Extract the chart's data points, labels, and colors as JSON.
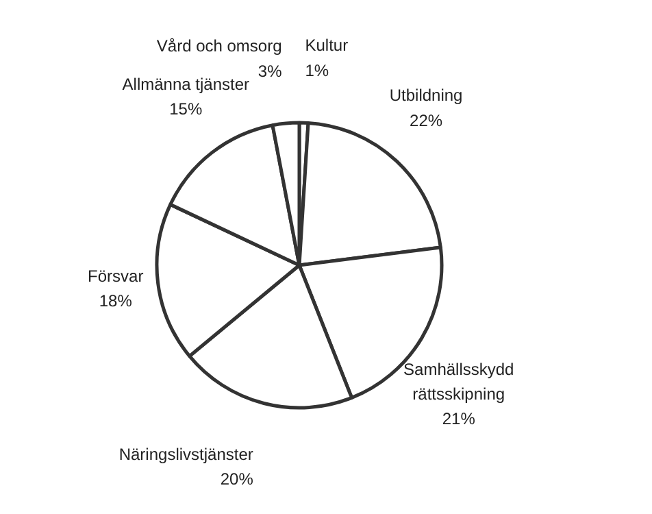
{
  "chart_data": {
    "type": "pie",
    "categories": [
      "Kultur",
      "Utbildning",
      "Samhällsskydd\nrättsskipning",
      "Näringslivstjänster",
      "Försvar",
      "Allmänna tjänster",
      "Vård och omsorg"
    ],
    "values": [
      1,
      22,
      21,
      20,
      18,
      15,
      3
    ],
    "value_labels": [
      "1%",
      "22%",
      "21%",
      "20%",
      "18%",
      "15%",
      "3%"
    ],
    "colors": [
      "#ffffff",
      "#ffffff",
      "#ffffff",
      "#ffffff",
      "#ffffff",
      "#ffffff",
      "#ffffff"
    ]
  }
}
